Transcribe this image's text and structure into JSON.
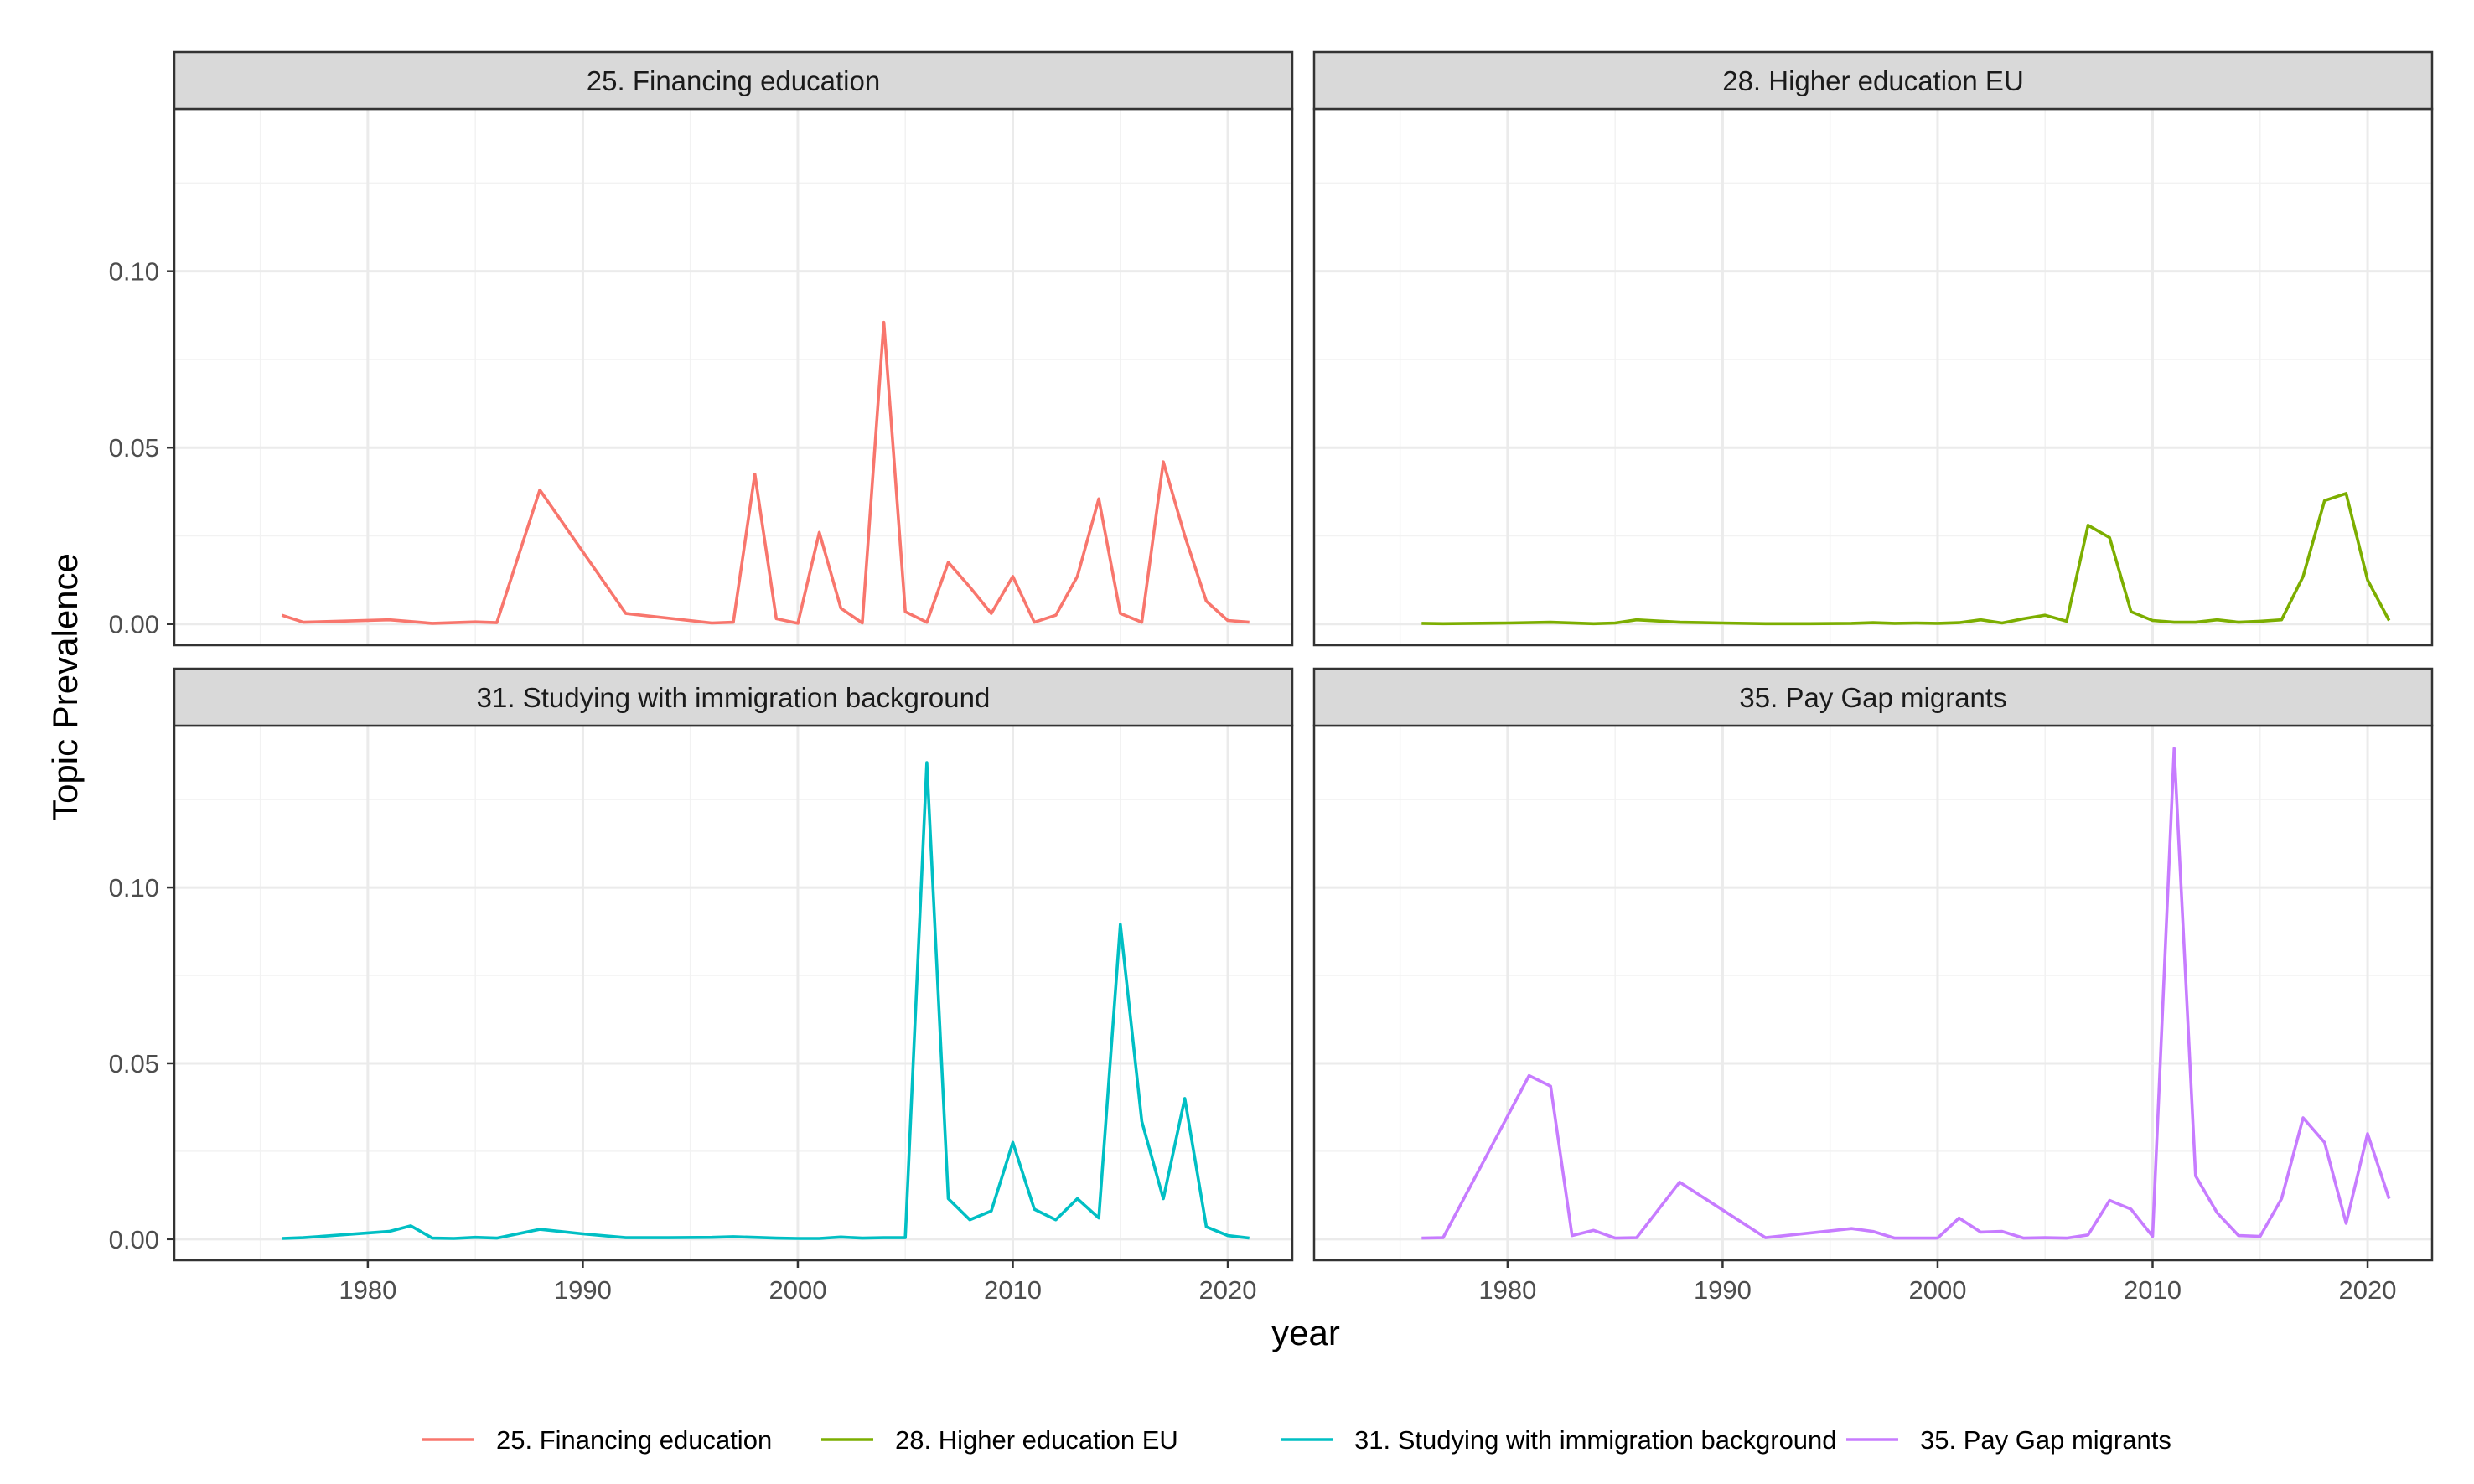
{
  "chart_data": {
    "type": "line",
    "xlabel": "year",
    "ylabel": "Topic Prevalence",
    "xlim": [
      1971,
      2023
    ],
    "ylim": [
      -0.006,
      0.146
    ],
    "x_ticks": [
      1980,
      1990,
      2000,
      2010,
      2020
    ],
    "y_ticks": [
      0.0,
      0.05,
      0.1
    ],
    "y_tick_labels": [
      "0.00",
      "0.05",
      "0.10"
    ],
    "grid": true,
    "legend_position": "bottom",
    "panels": [
      {
        "title": "25. Financing education",
        "color": "#F8766D",
        "x": [
          1976,
          1977,
          1981,
          1983,
          1985,
          1986,
          1988,
          1992,
          1996,
          1997,
          1998,
          1999,
          2000,
          2001,
          2002,
          2003,
          2004,
          2005,
          2006,
          2007,
          2008,
          2009,
          2010,
          2011,
          2012,
          2013,
          2014,
          2015,
          2016,
          2017,
          2018,
          2019,
          2020,
          2021
        ],
        "y": [
          0.0025,
          0.0005,
          0.0012,
          0.0002,
          0.0006,
          0.0004,
          0.038,
          0.003,
          0.0003,
          0.0005,
          0.0425,
          0.0015,
          0.0002,
          0.026,
          0.0045,
          0.0003,
          0.0855,
          0.0035,
          0.0005,
          0.0175,
          0.0105,
          0.003,
          0.0135,
          0.0005,
          0.0025,
          0.0135,
          0.0355,
          0.003,
          0.0005,
          0.046,
          0.025,
          0.0065,
          0.001,
          0.0005
        ]
      },
      {
        "title": "28. Higher education EU",
        "color": "#7CAE00",
        "x": [
          1976,
          1977,
          1980,
          1982,
          1984,
          1985,
          1986,
          1988,
          1990,
          1992,
          1994,
          1996,
          1997,
          1998,
          1999,
          2000,
          2001,
          2002,
          2003,
          2004,
          2005,
          2006,
          2007,
          2008,
          2009,
          2010,
          2011,
          2012,
          2013,
          2014,
          2015,
          2016,
          2017,
          2018,
          2019,
          2020,
          2021
        ],
        "y": [
          0.0002,
          0.0001,
          0.0003,
          0.0005,
          0.0001,
          0.0003,
          0.0012,
          0.0005,
          0.0003,
          0.0001,
          0.0001,
          0.0002,
          0.0004,
          0.0002,
          0.0003,
          0.0002,
          0.0004,
          0.0012,
          0.0003,
          0.0015,
          0.0025,
          0.0008,
          0.028,
          0.0245,
          0.0035,
          0.001,
          0.0005,
          0.0005,
          0.0012,
          0.0005,
          0.0008,
          0.0012,
          0.0135,
          0.035,
          0.037,
          0.0125,
          0.001
        ]
      },
      {
        "title": "31. Studying with immigration background",
        "color": "#00BFC4",
        "x": [
          1976,
          1977,
          1981,
          1982,
          1983,
          1984,
          1985,
          1986,
          1988,
          1990,
          1992,
          1994,
          1996,
          1997,
          1998,
          1999,
          2000,
          2001,
          2002,
          2003,
          2004,
          2005,
          2006,
          2007,
          2008,
          2009,
          2010,
          2011,
          2012,
          2013,
          2014,
          2015,
          2016,
          2017,
          2018,
          2019,
          2020,
          2021
        ],
        "y": [
          0.0002,
          0.0004,
          0.0022,
          0.0038,
          0.0003,
          0.0002,
          0.0005,
          0.0003,
          0.0028,
          0.0015,
          0.0004,
          0.0004,
          0.0005,
          0.0007,
          0.0005,
          0.0003,
          0.0002,
          0.0002,
          0.0006,
          0.0003,
          0.0004,
          0.0004,
          0.1355,
          0.0115,
          0.0055,
          0.008,
          0.0275,
          0.0085,
          0.0055,
          0.0115,
          0.006,
          0.0895,
          0.0335,
          0.0115,
          0.04,
          0.0035,
          0.001,
          0.0003
        ]
      },
      {
        "title": "35. Pay Gap migrants",
        "color": "#C77CFF",
        "x": [
          1976,
          1977,
          1981,
          1982,
          1983,
          1984,
          1985,
          1986,
          1988,
          1992,
          1996,
          1997,
          1998,
          1999,
          2000,
          2001,
          2002,
          2003,
          2004,
          2005,
          2006,
          2007,
          2008,
          2009,
          2010,
          2011,
          2012,
          2013,
          2014,
          2015,
          2016,
          2017,
          2018,
          2019,
          2020,
          2021
        ],
        "y": [
          0.0003,
          0.0004,
          0.0465,
          0.0435,
          0.001,
          0.0025,
          0.0003,
          0.0004,
          0.0162,
          0.0004,
          0.003,
          0.0022,
          0.0003,
          0.0003,
          0.0003,
          0.006,
          0.002,
          0.0022,
          0.0003,
          0.0004,
          0.0003,
          0.0012,
          0.011,
          0.0085,
          0.0008,
          0.1395,
          0.018,
          0.0075,
          0.001,
          0.0008,
          0.0115,
          0.0345,
          0.0275,
          0.0045,
          0.03,
          0.0115
        ]
      }
    ],
    "legend": [
      {
        "label": "25. Financing education",
        "color": "#F8766D"
      },
      {
        "label": "28. Higher education EU",
        "color": "#7CAE00"
      },
      {
        "label": "31. Studying with immigration background",
        "color": "#00BFC4"
      },
      {
        "label": "35. Pay Gap migrants",
        "color": "#C77CFF"
      }
    ]
  }
}
